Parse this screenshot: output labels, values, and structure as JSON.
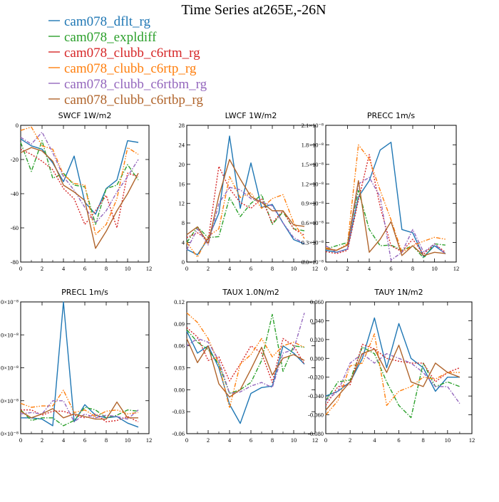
{
  "title": "Time Series at265E,-26N",
  "legend": [
    {
      "name": "cam078_dflt_rg",
      "color": "#1f77b4"
    },
    {
      "name": "cam078_expldiff",
      "color": "#2ca02c"
    },
    {
      "name": "cam078_clubb_c6rtm_rg",
      "color": "#d62728"
    },
    {
      "name": "cam078_clubb_c6rtp_rg",
      "color": "#ff7f0e"
    },
    {
      "name": "cam078_clubb_c6rtbm_rg",
      "color": "#9467bd"
    },
    {
      "name": "cam078_clubb_c6rtbp_rg",
      "color": "#b0642b"
    }
  ],
  "chart_data": [
    {
      "type": "line",
      "title": "SWCF  1W/m2",
      "x": [
        0,
        1,
        2,
        3,
        4,
        5,
        6,
        7,
        8,
        9,
        10,
        11
      ],
      "xlim": [
        0,
        12
      ],
      "xticks": [
        "0",
        "2",
        "4",
        "6",
        "8",
        "10",
        "12"
      ],
      "ylim": [
        -80,
        0
      ],
      "yticks": [
        "-80",
        "-60",
        "-40",
        "-20",
        "0"
      ],
      "series": [
        {
          "name": "cam078_dflt_rg",
          "values": [
            -8,
            -12,
            -14,
            -22,
            -33,
            -18,
            -45,
            -52,
            -37,
            -32,
            -9,
            -10
          ]
        },
        {
          "name": "cam078_expldiff",
          "values": [
            -10,
            -27,
            -9,
            -31,
            -28,
            -35,
            -36,
            -58,
            -37,
            -35,
            -23,
            -32
          ]
        },
        {
          "name": "cam078_clubb_c6rtm_rg",
          "values": [
            -14,
            -17,
            -21,
            -26,
            -37,
            -43,
            -58,
            -50,
            -41,
            -60,
            -28,
            -30
          ]
        },
        {
          "name": "cam078_clubb_c6rtp_rg",
          "values": [
            -3,
            -1,
            -12,
            -14,
            -29,
            -34,
            -35,
            -64,
            -58,
            -43,
            -13,
            -17
          ]
        },
        {
          "name": "cam078_clubb_c6rtbm_rg",
          "values": [
            -7,
            -11,
            -4,
            -16,
            -30,
            -38,
            -48,
            -57,
            -50,
            -39,
            -30,
            -20
          ]
        },
        {
          "name": "cam078_clubb_c6rtbp_rg",
          "values": [
            -16,
            -13,
            -15,
            -21,
            -35,
            -39,
            -44,
            -72,
            -62,
            -50,
            -40,
            -28
          ]
        }
      ]
    },
    {
      "type": "line",
      "title": "LWCF  1W/m2",
      "x": [
        0,
        1,
        2,
        3,
        4,
        5,
        6,
        7,
        8,
        9,
        10,
        11
      ],
      "xlim": [
        0,
        12
      ],
      "xticks": [
        "0",
        "2",
        "4",
        "6",
        "8",
        "10",
        "12"
      ],
      "ylim": [
        0,
        28
      ],
      "yticks": [
        "0",
        "4",
        "8",
        "12",
        "16",
        "20",
        "24",
        "28"
      ],
      "series": [
        {
          "name": "cam078_dflt_rg",
          "values": [
            2.6,
            1.5,
            4.8,
            10,
            25.8,
            11,
            20.3,
            11.2,
            11.8,
            8,
            4.6,
            3.7
          ]
        },
        {
          "name": "cam078_expldiff",
          "values": [
            4,
            7.2,
            5,
            5.2,
            13.2,
            9.3,
            12,
            13.8,
            7.7,
            10.3,
            6.8,
            6.4
          ]
        },
        {
          "name": "cam078_clubb_c6rtm_rg",
          "values": [
            5,
            6,
            4.5,
            19.6,
            15,
            12.2,
            11,
            13,
            8,
            10.5,
            6.8,
            5.5
          ]
        },
        {
          "name": "cam078_clubb_c6rtp_rg",
          "values": [
            4,
            1,
            5.3,
            6.8,
            17.5,
            13.2,
            14.2,
            11,
            13,
            13.8,
            8,
            4.8
          ]
        },
        {
          "name": "cam078_clubb_c6rtbm_rg",
          "values": [
            2.5,
            6.8,
            3.5,
            12,
            15.3,
            14.8,
            13,
            12.3,
            11.5,
            8,
            5,
            3.8
          ]
        },
        {
          "name": "cam078_clubb_c6rtbp_rg",
          "values": [
            5.6,
            7.2,
            3.8,
            13.5,
            21,
            17,
            13.4,
            12.2,
            10.5,
            10.5,
            7.6,
            7.3
          ]
        }
      ]
    },
    {
      "type": "line",
      "title": "PRECC  1m/s",
      "x": [
        0,
        1,
        2,
        3,
        4,
        5,
        6,
        7,
        8,
        9,
        10,
        11
      ],
      "xlim": [
        0,
        12
      ],
      "xticks": [
        "0",
        "2",
        "4",
        "6",
        "8",
        "10",
        "12"
      ],
      "ylim": [
        0,
        2.1e-08
      ],
      "yticks": [
        "0.0×10⁻⁸",
        "0.3×10⁻⁸",
        "0.6×10⁻⁸",
        "0.9×10⁻⁸",
        "1.2×10⁻⁸",
        "1.5×10⁻⁸",
        "1.8×10⁻⁸",
        "2.1×10⁻⁸"
      ],
      "series": [
        {
          "name": "cam078_dflt_rg",
          "values": [
            1.8e-09,
            1.5e-09,
            2e-09,
            1e-08,
            1.25e-08,
            1.72e-08,
            1.84e-08,
            5e-09,
            4.5e-09,
            8e-10,
            2.5e-09,
            1.3e-09
          ]
        },
        {
          "name": "cam078_expldiff",
          "values": [
            2e-09,
            2.5e-09,
            3e-09,
            1.1e-08,
            5e-09,
            2.5e-09,
            2.6e-09,
            1.8e-09,
            2.5e-09,
            6e-10,
            2.8e-09,
            2.6e-09
          ]
        },
        {
          "name": "cam078_clubb_c6rtm_rg",
          "values": [
            1.6e-09,
            1.3e-09,
            1.8e-09,
            9.5e-09,
            1.65e-08,
            8.5e-09,
            2.5e-09,
            1.6e-09,
            3.5e-09,
            1.2e-09,
            2.8e-09,
            1.5e-09
          ]
        },
        {
          "name": "cam078_clubb_c6rtp_rg",
          "values": [
            2.2e-09,
            1.8e-09,
            2.8e-09,
            1.8e-08,
            1.58e-08,
            1.1e-08,
            6.5e-09,
            1.5e-09,
            2.5e-09,
            3.2e-09,
            3.8e-09,
            3.5e-09
          ]
        },
        {
          "name": "cam078_clubb_c6rtbm_rg",
          "values": [
            2.5e-09,
            1.5e-09,
            2e-09,
            1.2e-08,
            1.3e-08,
            1e-08,
            3e-10,
            1.5e-09,
            5e-09,
            1.5e-09,
            2.8e-09,
            1.2e-09
          ]
        },
        {
          "name": "cam078_clubb_c6rtbp_rg",
          "values": [
            2e-09,
            1.8e-09,
            2.6e-09,
            1.25e-08,
            1.5e-09,
            3.5e-09,
            6.2e-09,
            1e-09,
            2.5e-09,
            1e-09,
            1.5e-09,
            1.3e-09
          ]
        }
      ]
    },
    {
      "type": "line",
      "title": "PRECL  1m/s",
      "x": [
        0,
        1,
        2,
        3,
        4,
        5,
        6,
        7,
        8,
        9,
        10,
        11
      ],
      "xlim": [
        0,
        12
      ],
      "xticks": [
        "0",
        "2",
        "4",
        "6",
        "8",
        "10",
        "12"
      ],
      "ylim": [
        0,
        1
      ],
      "yticks": [
        "0×10⁻⁸",
        "0×10⁻⁸",
        "0×10⁻⁸",
        "0×10⁻⁸",
        "0×10⁻⁸"
      ],
      "series": [
        {
          "name": "cam078_dflt_rg",
          "values": [
            0.12,
            0.12,
            0.11,
            0.06,
            1.0,
            0.09,
            0.22,
            0.14,
            0.12,
            0.13,
            0.08,
            0.05
          ]
        },
        {
          "name": "cam078_expldiff",
          "values": [
            0.18,
            0.1,
            0.12,
            0.12,
            0.06,
            0.1,
            0.2,
            0.18,
            0.12,
            0.14,
            0.18,
            0.17
          ]
        },
        {
          "name": "cam078_clubb_c6rtm_rg",
          "values": [
            0.18,
            0.18,
            0.14,
            0.17,
            0.17,
            0.14,
            0.12,
            0.15,
            0.09,
            0.1,
            0.13,
            0.09
          ]
        },
        {
          "name": "cam078_clubb_c6rtp_rg",
          "values": [
            0.23,
            0.2,
            0.21,
            0.21,
            0.33,
            0.16,
            0.18,
            0.13,
            0.17,
            0.18,
            0.15,
            0.16
          ]
        },
        {
          "name": "cam078_clubb_c6rtbm_rg",
          "values": [
            0.15,
            0.16,
            0.15,
            0.25,
            0.25,
            0.09,
            0.15,
            0.12,
            0.14,
            0.13,
            0.11,
            0.18
          ]
        },
        {
          "name": "cam078_clubb_c6rtbp_rg",
          "values": [
            0.17,
            0.12,
            0.15,
            0.19,
            0.12,
            0.15,
            0.13,
            0.11,
            0.11,
            0.24,
            0.12,
            0.12
          ]
        }
      ]
    },
    {
      "type": "line",
      "title": "TAUX  1.0N/m2",
      "x": [
        0,
        1,
        2,
        3,
        4,
        5,
        6,
        7,
        8,
        9,
        10,
        11
      ],
      "xlim": [
        0,
        12
      ],
      "xticks": [
        "0",
        "2",
        "4",
        "6",
        "8",
        "10",
        "12"
      ],
      "ylim": [
        -0.06,
        0.12
      ],
      "yticks": [
        "-0.06",
        "-0.03",
        "0.00",
        "0.03",
        "0.06",
        "0.09",
        "0.12"
      ],
      "series": [
        {
          "name": "cam078_dflt_rg",
          "values": [
            0.08,
            0.05,
            0.06,
            0.03,
            -0.02,
            -0.046,
            -0.005,
            0.003,
            0.005,
            0.06,
            0.05,
            0.035
          ]
        },
        {
          "name": "cam078_expldiff",
          "values": [
            0.082,
            0.065,
            0.055,
            0.035,
            -0.005,
            0.0,
            0.01,
            0.04,
            0.103,
            0.025,
            0.06,
            0.058
          ]
        },
        {
          "name": "cam078_clubb_c6rtm_rg",
          "values": [
            0.085,
            0.072,
            0.04,
            0.045,
            0.012,
            0.035,
            0.06,
            0.05,
            0.01,
            0.07,
            0.06,
            0.035
          ]
        },
        {
          "name": "cam078_clubb_c6rtp_rg",
          "values": [
            0.105,
            0.092,
            0.07,
            0.035,
            -0.025,
            0.035,
            0.048,
            0.07,
            0.045,
            0.06,
            0.065,
            0.058
          ]
        },
        {
          "name": "cam078_clubb_c6rtbm_rg",
          "values": [
            0.06,
            0.07,
            0.065,
            0.04,
            -0.005,
            -0.003,
            0.005,
            0.01,
            0.003,
            0.05,
            0.055,
            0.105
          ]
        },
        {
          "name": "cam078_clubb_c6rtbp_rg",
          "values": [
            0.07,
            0.037,
            0.06,
            0.008,
            -0.01,
            0.0,
            0.028,
            0.058,
            0.02,
            0.043,
            0.048,
            0.04
          ]
        }
      ]
    },
    {
      "type": "line",
      "title": "TAUY  1N/m2",
      "x": [
        0,
        1,
        2,
        3,
        4,
        5,
        6,
        7,
        8,
        9,
        10,
        11
      ],
      "xlim": [
        0,
        12
      ],
      "xticks": [
        "0",
        "2",
        "4",
        "6",
        "8",
        "10",
        "12"
      ],
      "ylim": [
        -0.08,
        0.06
      ],
      "yticks": [
        "-0.080",
        "-0.060",
        "-0.040",
        "-0.020",
        "0.000",
        "0.020",
        "0.040",
        "0.060"
      ],
      "series": [
        {
          "name": "cam078_dflt_rg",
          "values": [
            -0.04,
            -0.035,
            -0.025,
            0.0,
            0.043,
            -0.01,
            0.037,
            0.0,
            -0.01,
            -0.035,
            -0.02,
            -0.02
          ]
        },
        {
          "name": "cam078_expldiff",
          "values": [
            -0.045,
            -0.025,
            -0.023,
            0.012,
            0.005,
            -0.025,
            -0.05,
            -0.063,
            -0.005,
            -0.03,
            -0.025,
            -0.03
          ]
        },
        {
          "name": "cam078_clubb_c6rtm_rg",
          "values": [
            -0.05,
            -0.03,
            -0.028,
            0.015,
            0.01,
            0.0,
            -0.003,
            -0.005,
            -0.005,
            -0.025,
            -0.015,
            -0.01
          ]
        },
        {
          "name": "cam078_clubb_c6rtp_rg",
          "values": [
            -0.06,
            -0.045,
            -0.008,
            -0.005,
            0.026,
            -0.05,
            -0.035,
            -0.03,
            -0.02,
            -0.022,
            -0.015,
            -0.015
          ]
        },
        {
          "name": "cam078_clubb_c6rtbm_rg",
          "values": [
            -0.045,
            -0.035,
            -0.005,
            0.005,
            -0.005,
            0.005,
            0.0,
            -0.005,
            -0.015,
            -0.03,
            -0.03,
            -0.048
          ]
        },
        {
          "name": "cam078_clubb_c6rtbp_rg",
          "values": [
            -0.055,
            -0.04,
            -0.025,
            0.005,
            0.01,
            -0.015,
            0.014,
            -0.025,
            -0.03,
            -0.005,
            -0.015,
            -0.02
          ]
        }
      ]
    }
  ]
}
